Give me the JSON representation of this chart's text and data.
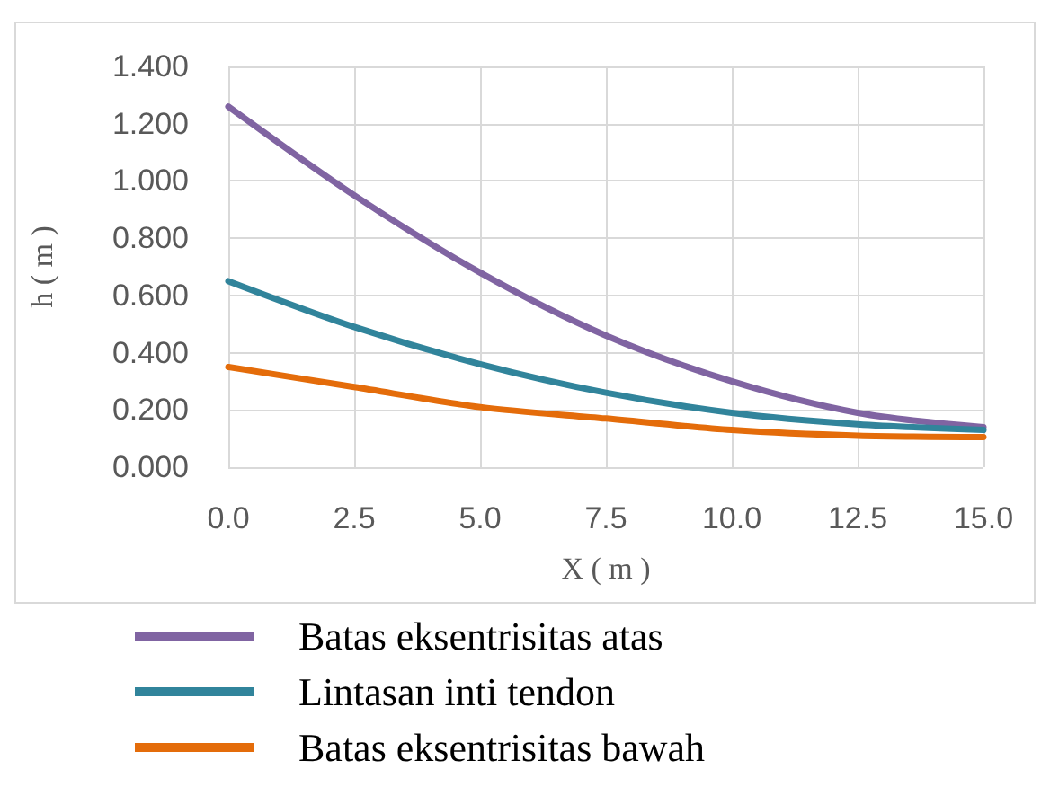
{
  "chart_data": {
    "type": "line",
    "xlabel": "X ( m )",
    "ylabel": "h ( m )",
    "x": [
      0,
      2.5,
      5,
      7.5,
      10,
      12.5,
      15
    ],
    "series": [
      {
        "name": "Batas eksentrisitas atas",
        "color": "#8064a2",
        "values": [
          1.26,
          0.95,
          0.68,
          0.46,
          0.3,
          0.19,
          0.14
        ]
      },
      {
        "name": "Lintasan inti tendon",
        "color": "#31849b",
        "values": [
          0.65,
          0.49,
          0.36,
          0.26,
          0.19,
          0.15,
          0.13
        ]
      },
      {
        "name": "Batas eksentrisitas bawah",
        "color": "#e46c0a",
        "values": [
          0.35,
          0.28,
          0.21,
          0.17,
          0.13,
          0.11,
          0.105
        ]
      }
    ],
    "xlim": [
      0,
      15
    ],
    "xticks": [
      {
        "value": 0,
        "label": "0.0"
      },
      {
        "value": 2.5,
        "label": "2.5"
      },
      {
        "value": 5,
        "label": "5.0"
      },
      {
        "value": 7.5,
        "label": "7.5"
      },
      {
        "value": 10,
        "label": "10.0"
      },
      {
        "value": 12.5,
        "label": "12.5"
      },
      {
        "value": 15,
        "label": "15.0"
      }
    ],
    "ylim": [
      0,
      1.4
    ],
    "yticks": [
      {
        "value": 0,
        "label": "0.000"
      },
      {
        "value": 0.2,
        "label": "0.200"
      },
      {
        "value": 0.4,
        "label": "0.400"
      },
      {
        "value": 0.6,
        "label": "0.600"
      },
      {
        "value": 0.8,
        "label": "0.800"
      },
      {
        "value": 1,
        "label": "1.000"
      },
      {
        "value": 1.2,
        "label": "1.200"
      },
      {
        "value": 1.4,
        "label": "1.400"
      }
    ],
    "grid": true,
    "legend": "bottom",
    "marker": "none",
    "line_style": "solid"
  }
}
